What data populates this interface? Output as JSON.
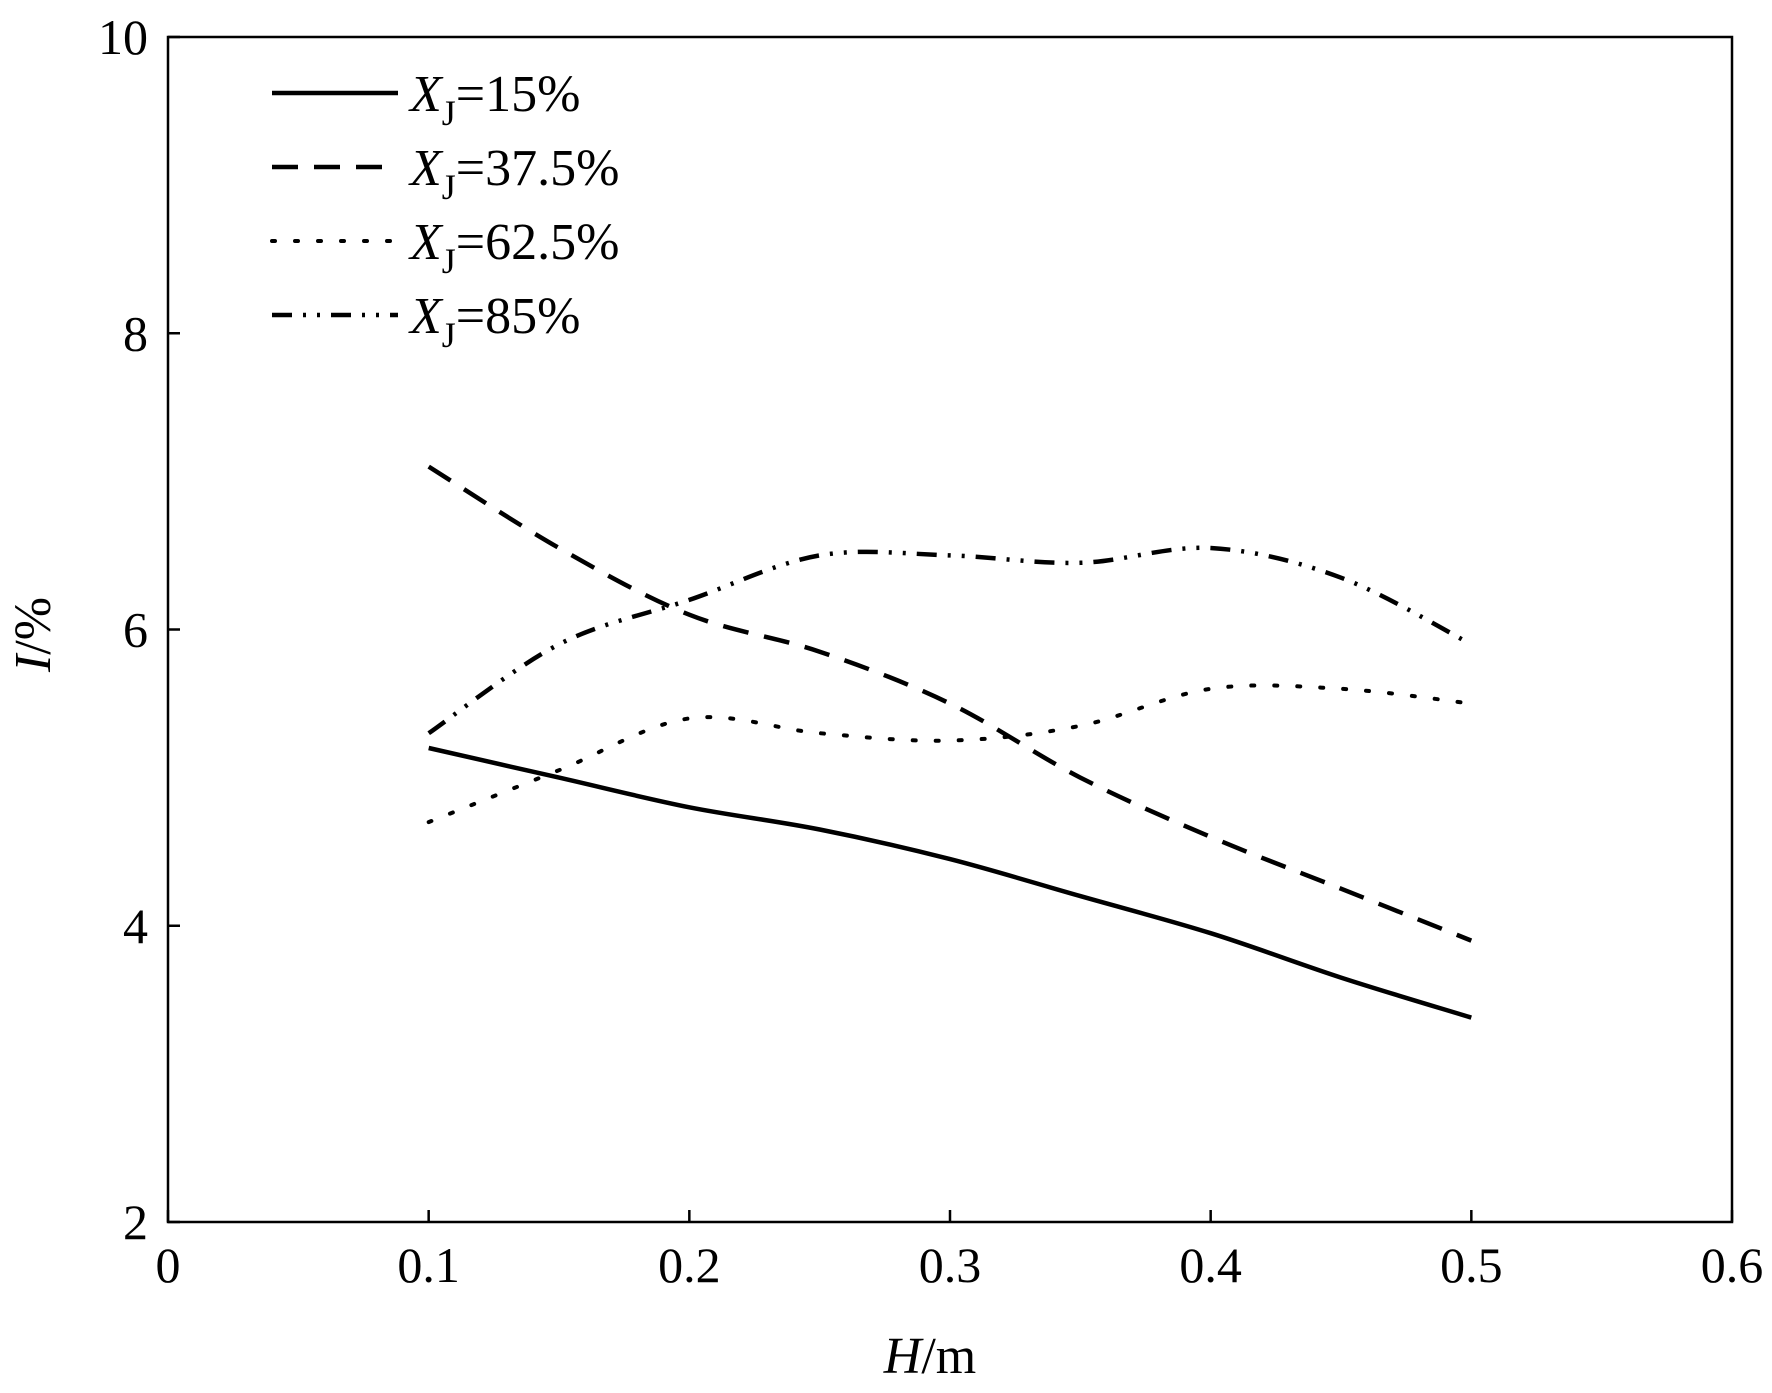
{
  "chart_data": {
    "type": "line",
    "title": "",
    "xlabel": "H/m",
    "xlabel_var": "H",
    "xlabel_unit": "/m",
    "ylabel": "I/%",
    "ylabel_var": "I",
    "ylabel_unit": "/%",
    "xlim": [
      0,
      0.6
    ],
    "ylim": [
      2,
      10
    ],
    "xticks": [
      0,
      0.1,
      0.2,
      0.3,
      0.4,
      0.5,
      0.6
    ],
    "xtick_labels": [
      "0",
      "0.1",
      "0.2",
      "0.3",
      "0.4",
      "0.5",
      "0.6"
    ],
    "yticks": [
      2,
      4,
      6,
      8,
      10
    ],
    "ytick_labels": [
      "2",
      "4",
      "6",
      "8",
      "10"
    ],
    "grid": false,
    "legend_position": "top-left",
    "series": [
      {
        "name": "XJ=15%",
        "var": "X",
        "sub": "J",
        "value_text": "=15%",
        "style": "solid",
        "x": [
          0.1,
          0.15,
          0.2,
          0.25,
          0.3,
          0.35,
          0.4,
          0.45,
          0.5
        ],
        "y": [
          5.2,
          5.0,
          4.8,
          4.65,
          4.45,
          4.2,
          3.95,
          3.65,
          3.38
        ]
      },
      {
        "name": "XJ=37.5%",
        "var": "X",
        "sub": "J",
        "value_text": "=37.5%",
        "style": "dashed",
        "x": [
          0.1,
          0.15,
          0.2,
          0.25,
          0.3,
          0.35,
          0.4,
          0.45,
          0.5
        ],
        "y": [
          7.1,
          6.55,
          6.1,
          5.85,
          5.5,
          5.0,
          4.6,
          4.25,
          3.9
        ]
      },
      {
        "name": "XJ=62.5%",
        "var": "X",
        "sub": "J",
        "value_text": "=62.5%",
        "style": "dotted",
        "x": [
          0.1,
          0.15,
          0.2,
          0.25,
          0.3,
          0.35,
          0.4,
          0.45,
          0.5
        ],
        "y": [
          4.7,
          5.05,
          5.4,
          5.3,
          5.25,
          5.35,
          5.6,
          5.6,
          5.5
        ]
      },
      {
        "name": "XJ=85%",
        "var": "X",
        "sub": "J",
        "value_text": "=85%",
        "style": "dash-dot-dot",
        "x": [
          0.1,
          0.15,
          0.2,
          0.25,
          0.3,
          0.35,
          0.4,
          0.45,
          0.5
        ],
        "y": [
          5.3,
          5.9,
          6.2,
          6.5,
          6.5,
          6.45,
          6.55,
          6.35,
          5.9
        ]
      }
    ]
  }
}
